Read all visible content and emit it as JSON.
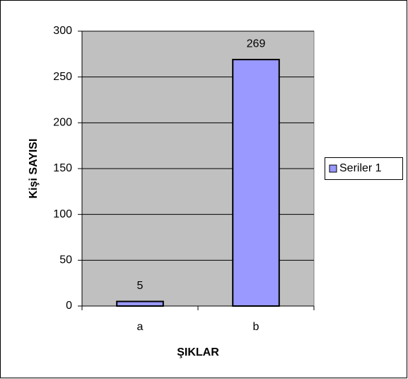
{
  "chart_data": {
    "type": "bar",
    "categories": [
      "a",
      "b"
    ],
    "series": [
      {
        "name": "Seriler 1",
        "color": "#9999ff",
        "values": [
          5,
          269
        ]
      }
    ],
    "ylim": [
      0,
      300
    ],
    "yticks": [
      0,
      50,
      100,
      150,
      200,
      250,
      300
    ],
    "x_label": "ŞIKLAR",
    "y_label": "Kişi SAYISI",
    "grid": true,
    "legend": "right",
    "plot_background": "#c0c0c0"
  }
}
